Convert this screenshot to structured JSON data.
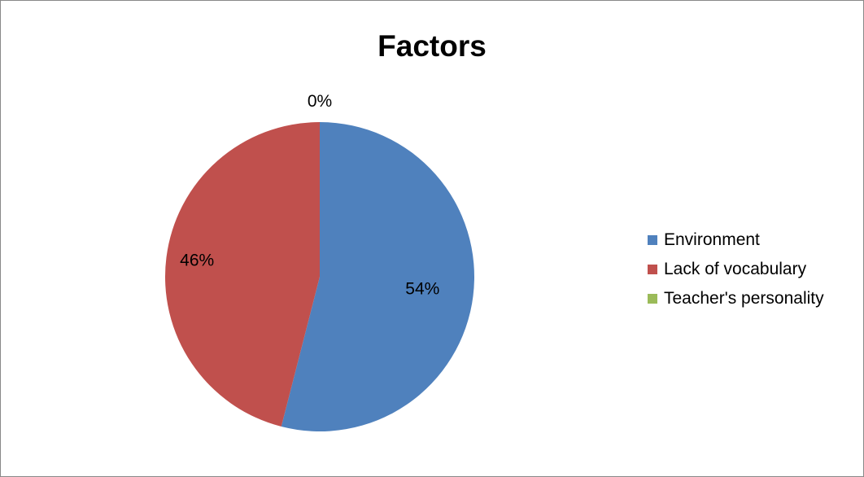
{
  "chart_data": {
    "type": "pie",
    "title": "Factors",
    "categories": [
      "Environment",
      "Lack of vocabulary",
      "Teacher's personality"
    ],
    "values": [
      54,
      46,
      0
    ],
    "data_labels": [
      "54%",
      "46%",
      "0%"
    ],
    "colors": [
      "#4F81BD",
      "#C0504D",
      "#9BBB59"
    ],
    "legend_position": "right"
  }
}
